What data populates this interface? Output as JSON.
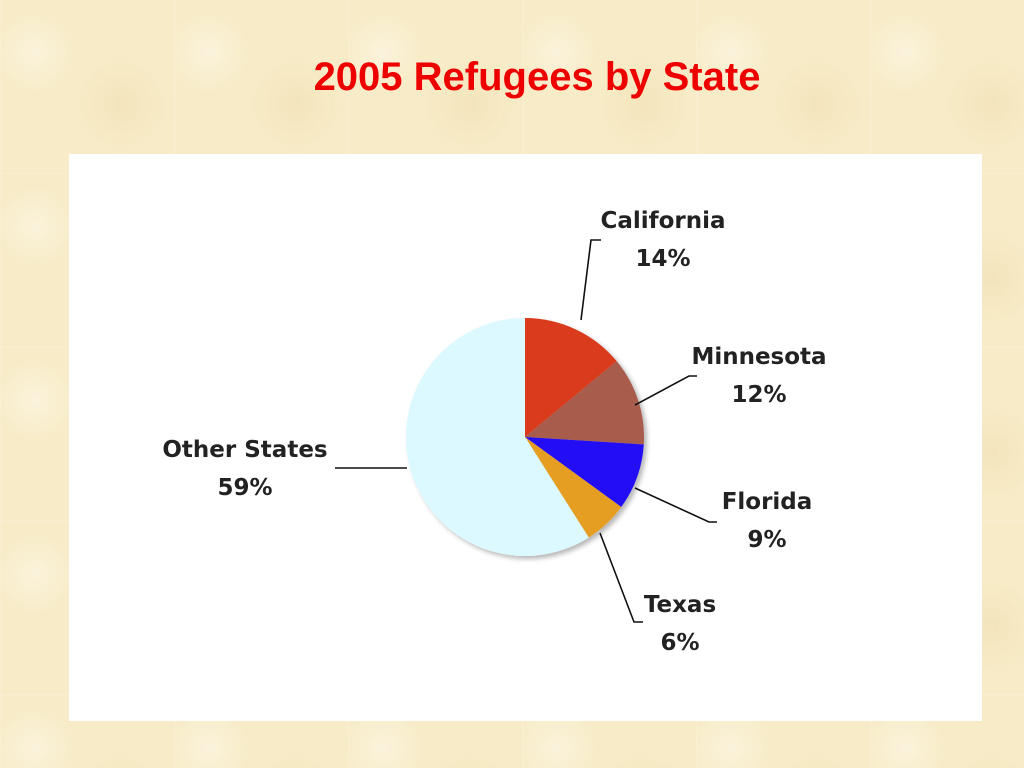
{
  "chart_data": {
    "type": "pie",
    "title": "2005 Refugees by State",
    "slices": [
      {
        "label": "California",
        "value_label": "14%",
        "value": 14,
        "color": "#d93a1c"
      },
      {
        "label": "Minnesota",
        "value_label": "12%",
        "value": 12,
        "color": "#a85b4c"
      },
      {
        "label": "Florida",
        "value_label": "9%",
        "value": 9,
        "color": "#2010f5"
      },
      {
        "label": "Texas",
        "value_label": "6%",
        "value": 6,
        "color": "#e59d24"
      },
      {
        "label": "Other States",
        "value_label": "59%",
        "value": 59,
        "color": "#dcf9ff"
      }
    ],
    "start_angle": "12 o'clock",
    "direction": "clockwise"
  }
}
